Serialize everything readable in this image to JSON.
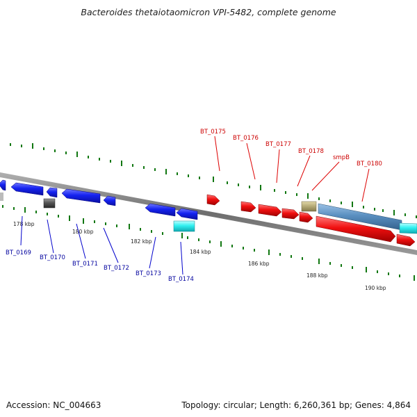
{
  "title": "Bacteroides thetaiotaomicron VPI-5482, complete genome",
  "footer": {
    "accession": "Accession: NC_004663",
    "summary": "Topology: circular; Length: 6,260,361 bp; Genes: 4,864"
  },
  "colors": {
    "minus_strand_gene": "#0a14e8",
    "plus_strand_gene": "#f01010",
    "minus_label": "#00009e",
    "plus_label": "#cc0000",
    "rna_gene": "#30f0f0",
    "pseudo_gene": "#555555",
    "smpB_gene": "#b8ad7a",
    "long_gene": "#5a8fc0",
    "tick": "#117711",
    "backbone": "#777777"
  },
  "scale": {
    "labels": [
      "178 kbp",
      "180 kbp",
      "182 kbp",
      "184 kbp",
      "186 kbp",
      "188 kbp",
      "190 kbp"
    ]
  },
  "genes": {
    "minus_strand_labels": [
      "BT_0169",
      "BT_0170",
      "BT_0171",
      "BT_0172",
      "BT_0173",
      "BT_0174"
    ],
    "plus_strand_labels": [
      "BT_0175",
      "BT_0176",
      "BT_0177",
      "BT_0178",
      "smpB",
      "BT_0180"
    ]
  }
}
